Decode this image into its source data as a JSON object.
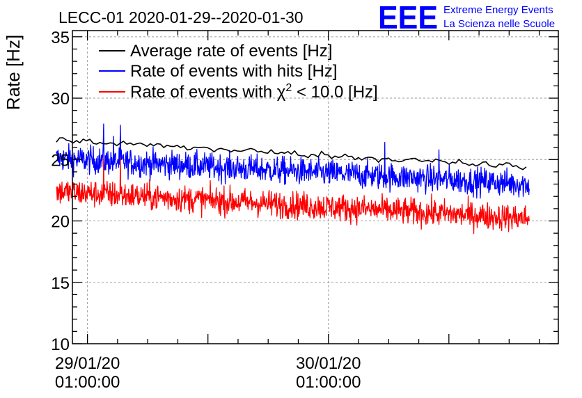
{
  "chart_data": {
    "type": "line",
    "title": "LECC-01 2020-01-29--2020-01-30",
    "ylabel": "Rate [Hz]",
    "xlabel": "",
    "ylim": [
      10,
      35.5
    ],
    "yticks": [
      10,
      15,
      20,
      25,
      30,
      35
    ],
    "xlim_hours": [
      -1.5,
      46.9
    ],
    "xticks": [
      {
        "hour": 0,
        "date": "29/01/20",
        "time": "01:00:00"
      },
      {
        "hour": 24,
        "date": "30/01/20",
        "time": "01:00:00"
      }
    ],
    "grid": true,
    "legend_position": "top-left",
    "series": [
      {
        "name": "Average rate of events [Hz]",
        "color": "#000000",
        "x_start": -3.1,
        "x_end": 43.7,
        "trend_start": 26.6,
        "trend_end": 24.4,
        "noise": 0.12
      },
      {
        "name": "Rate of events with hits [Hz]",
        "color": "#0000ff",
        "x_start": -3.1,
        "x_end": 44.0,
        "trend_start": 25.1,
        "trend_end": 23.0,
        "noise": 0.55,
        "spikes": [
          {
            "hour": 1.6,
            "value": 27.9
          },
          {
            "hour": 3.3,
            "value": 27.8
          },
          {
            "hour": 2.6,
            "value": 26.9
          },
          {
            "hour": 29.6,
            "value": 26.4
          },
          {
            "hour": 35.0,
            "value": 25.8
          }
        ]
      },
      {
        "name": "Rate of events with χ² < 10.0 [Hz]",
        "name_parts": {
          "pre": "Rate of events with ",
          "chi": "χ",
          "sup": "2",
          "post": " < 10.0 [Hz]"
        },
        "color": "#ff0000",
        "x_start": -3.1,
        "x_end": 44.0,
        "trend_start": 22.4,
        "trend_end": 20.2,
        "noise": 0.55,
        "spikes": [
          {
            "hour": 1.6,
            "value": 25.1
          },
          {
            "hour": 3.3,
            "value": 25.1
          }
        ]
      }
    ]
  },
  "logo": {
    "mark": "EEE",
    "line1": "Extreme Energy Events",
    "line2": "La Scienza nelle Scuole"
  }
}
